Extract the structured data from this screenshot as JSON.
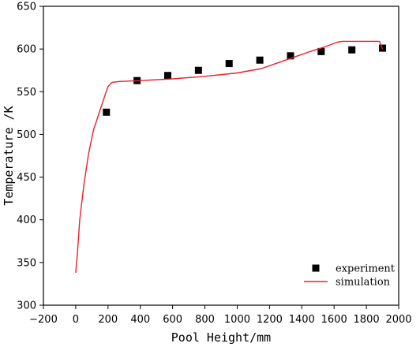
{
  "chart_data": {
    "type": "scatter",
    "title": "",
    "xlabel": "Pool Height/mm",
    "ylabel": "Temperature /K",
    "xlim": [
      -200,
      2000
    ],
    "ylim": [
      300,
      650
    ],
    "x_ticks": [
      -200,
      0,
      200,
      400,
      600,
      800,
      1000,
      1200,
      1400,
      1600,
      1800,
      2000
    ],
    "y_ticks": [
      300,
      350,
      400,
      450,
      500,
      550,
      600,
      650
    ],
    "grid": false,
    "legend_position": "bottom-right",
    "series": [
      {
        "name": "experiment",
        "kind": "scatter",
        "marker": "square",
        "color": "#000000",
        "points": [
          [
            190,
            526
          ],
          [
            380,
            563
          ],
          [
            570,
            569
          ],
          [
            760,
            575
          ],
          [
            950,
            583
          ],
          [
            1140,
            587
          ],
          [
            1330,
            592
          ],
          [
            1520,
            597
          ],
          [
            1710,
            599
          ],
          [
            1900,
            601
          ]
        ]
      },
      {
        "name": "simulation",
        "kind": "line",
        "color": "#e8202a",
        "points": [
          [
            0,
            338
          ],
          [
            10,
            360
          ],
          [
            25,
            400
          ],
          [
            50,
            440
          ],
          [
            80,
            478
          ],
          [
            110,
            505
          ],
          [
            150,
            528
          ],
          [
            180,
            545
          ],
          [
            200,
            556
          ],
          [
            225,
            561
          ],
          [
            270,
            562
          ],
          [
            400,
            563
          ],
          [
            600,
            565
          ],
          [
            800,
            568
          ],
          [
            1000,
            572
          ],
          [
            1150,
            577
          ],
          [
            1300,
            587
          ],
          [
            1450,
            597
          ],
          [
            1550,
            603
          ],
          [
            1620,
            608
          ],
          [
            1650,
            609
          ],
          [
            1750,
            609
          ],
          [
            1880,
            609
          ],
          [
            1900,
            600
          ]
        ]
      }
    ]
  }
}
